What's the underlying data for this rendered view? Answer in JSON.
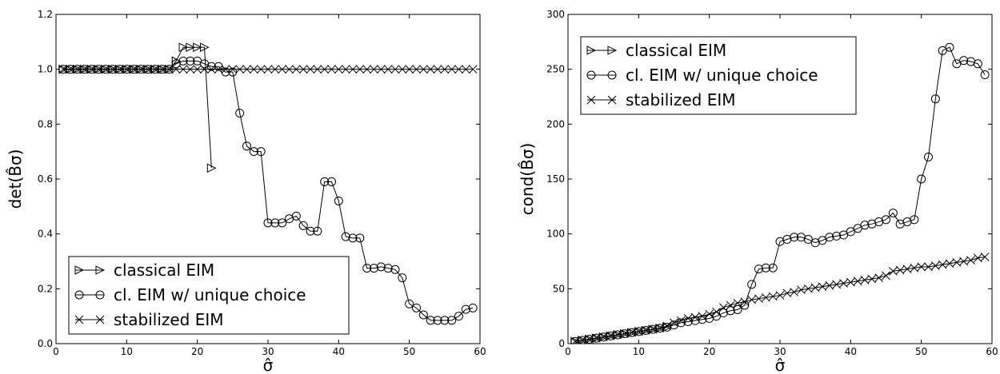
{
  "chart_data": [
    {
      "type": "line",
      "xlabel": "σ̂",
      "ylabel": "det(B̂σ)",
      "xlim": [
        0,
        60
      ],
      "ylim": [
        0.0,
        1.2
      ],
      "xticks": [
        0,
        10,
        20,
        30,
        40,
        50,
        60
      ],
      "yticks": [
        0.0,
        0.2,
        0.4,
        0.6,
        0.8,
        1.0,
        1.2
      ],
      "ytick_format": 1,
      "legend_position": "lower-left",
      "series": [
        {
          "name": "classical EIM",
          "marker": "triangle-right",
          "x": [
            1,
            2,
            3,
            4,
            5,
            6,
            7,
            8,
            9,
            10,
            11,
            12,
            13,
            14,
            15,
            16,
            17,
            18,
            19,
            20,
            21,
            22
          ],
          "y": [
            1.0,
            1.0,
            1.0,
            1.0,
            1.0,
            1.0,
            1.0,
            1.0,
            1.0,
            1.0,
            1.0,
            1.0,
            1.0,
            1.0,
            1.0,
            1.0,
            1.03,
            1.08,
            1.08,
            1.08,
            1.08,
            0.64
          ]
        },
        {
          "name": "cl. EIM w/ unique choice",
          "marker": "circle",
          "x": [
            1,
            2,
            3,
            4,
            5,
            6,
            7,
            8,
            9,
            10,
            11,
            12,
            13,
            14,
            15,
            16,
            17,
            18,
            19,
            20,
            21,
            22,
            23,
            24,
            25,
            26,
            27,
            28,
            29,
            30,
            31,
            32,
            33,
            34,
            35,
            36,
            37,
            38,
            39,
            40,
            41,
            42,
            43,
            44,
            45,
            46,
            47,
            48,
            49,
            50,
            51,
            52,
            53,
            54,
            55,
            56,
            57,
            58,
            59
          ],
          "y": [
            1.0,
            1.0,
            1.0,
            1.0,
            1.0,
            1.0,
            1.0,
            1.0,
            1.0,
            1.0,
            1.0,
            1.0,
            1.0,
            1.0,
            1.0,
            1.0,
            1.02,
            1.03,
            1.03,
            1.03,
            1.02,
            1.01,
            1.01,
            0.99,
            0.99,
            0.84,
            0.72,
            0.7,
            0.7,
            0.44,
            0.44,
            0.44,
            0.455,
            0.465,
            0.43,
            0.41,
            0.41,
            0.59,
            0.59,
            0.52,
            0.39,
            0.385,
            0.385,
            0.275,
            0.275,
            0.28,
            0.275,
            0.27,
            0.24,
            0.145,
            0.13,
            0.105,
            0.085,
            0.085,
            0.085,
            0.085,
            0.1,
            0.125,
            0.13
          ]
        },
        {
          "name": "stabilized EIM",
          "marker": "x",
          "x": [
            1,
            2,
            3,
            4,
            5,
            6,
            7,
            8,
            9,
            10,
            11,
            12,
            13,
            14,
            15,
            16,
            17,
            18,
            19,
            20,
            21,
            22,
            23,
            24,
            25,
            26,
            27,
            28,
            29,
            30,
            31,
            32,
            33,
            34,
            35,
            36,
            37,
            38,
            39,
            40,
            41,
            42,
            43,
            44,
            45,
            46,
            47,
            48,
            49,
            50,
            51,
            52,
            53,
            54,
            55,
            56,
            57,
            58,
            59
          ],
          "y": [
            1.0,
            1.0,
            1.0,
            1.0,
            1.0,
            1.0,
            1.0,
            1.0,
            1.0,
            1.0,
            1.0,
            1.0,
            1.0,
            1.0,
            1.0,
            1.0,
            1.0,
            1.0,
            1.0,
            1.0,
            1.0,
            1.0,
            1.0,
            1.0,
            1.0,
            1.0,
            1.0,
            1.0,
            1.0,
            1.0,
            1.0,
            1.0,
            1.0,
            1.0,
            1.0,
            1.0,
            1.0,
            1.0,
            1.0,
            1.0,
            1.0,
            1.0,
            1.0,
            1.0,
            1.0,
            1.0,
            1.0,
            1.0,
            1.0,
            1.0,
            1.0,
            1.0,
            1.0,
            1.0,
            1.0,
            1.0,
            1.0,
            1.0,
            1.0
          ]
        }
      ]
    },
    {
      "type": "line",
      "xlabel": "σ̂",
      "ylabel": "cond(B̂σ)",
      "xlim": [
        0,
        60
      ],
      "ylim": [
        0,
        300
      ],
      "xticks": [
        0,
        10,
        20,
        30,
        40,
        50,
        60
      ],
      "yticks": [
        0,
        50,
        100,
        150,
        200,
        250,
        300
      ],
      "ytick_format": 0,
      "legend_position": "top-left",
      "series": [
        {
          "name": "classical EIM",
          "marker": "triangle-right",
          "x": [
            1,
            2,
            3,
            4,
            5,
            6,
            7,
            8,
            9,
            10,
            11,
            12,
            13,
            14
          ],
          "y": [
            2,
            3,
            4,
            5,
            6,
            7,
            8,
            9,
            10,
            11,
            12,
            13,
            14,
            15
          ]
        },
        {
          "name": "cl. EIM w/ unique choice",
          "marker": "circle",
          "x": [
            1,
            2,
            3,
            4,
            5,
            6,
            7,
            8,
            9,
            10,
            11,
            12,
            13,
            14,
            15,
            16,
            17,
            18,
            19,
            20,
            21,
            22,
            23,
            24,
            25,
            26,
            27,
            28,
            29,
            30,
            31,
            32,
            33,
            34,
            35,
            36,
            37,
            38,
            39,
            40,
            41,
            42,
            43,
            44,
            45,
            46,
            47,
            48,
            49,
            50,
            51,
            52,
            53,
            54,
            55,
            56,
            57,
            58,
            59
          ],
          "y": [
            2,
            3,
            4,
            5,
            6,
            7,
            8,
            9,
            10,
            11,
            12,
            13,
            14,
            15,
            17,
            19,
            20,
            21,
            22,
            23,
            25,
            28,
            30,
            31,
            35,
            54,
            68,
            69,
            69,
            93,
            95,
            97,
            97,
            95,
            92,
            94,
            97,
            98,
            99,
            102,
            105,
            108,
            109,
            111,
            113,
            119,
            109,
            111,
            113,
            150,
            170,
            223,
            267,
            270,
            255,
            258,
            257,
            255,
            245
          ]
        },
        {
          "name": "stabilized EIM",
          "marker": "x",
          "x": [
            1,
            2,
            3,
            4,
            5,
            6,
            7,
            8,
            9,
            10,
            11,
            12,
            13,
            14,
            15,
            16,
            17,
            18,
            19,
            20,
            21,
            22,
            23,
            24,
            25,
            26,
            27,
            28,
            29,
            30,
            31,
            32,
            33,
            34,
            35,
            36,
            37,
            38,
            39,
            40,
            41,
            42,
            43,
            44,
            45,
            46,
            47,
            48,
            49,
            50,
            51,
            52,
            53,
            54,
            55,
            56,
            57,
            58,
            59
          ],
          "y": [
            2,
            3,
            4,
            5,
            6,
            7,
            8,
            9,
            10,
            11,
            12,
            13,
            14,
            16,
            19,
            21,
            23,
            24,
            25,
            27,
            29,
            33,
            35,
            37,
            38,
            40,
            41,
            42,
            43,
            44,
            46,
            47,
            49,
            50,
            51,
            52,
            53,
            54,
            55,
            56,
            57,
            58,
            59,
            60,
            62,
            66,
            67,
            68,
            69,
            70,
            70,
            71,
            72,
            73,
            74,
            75,
            76,
            78,
            79
          ]
        }
      ]
    }
  ]
}
